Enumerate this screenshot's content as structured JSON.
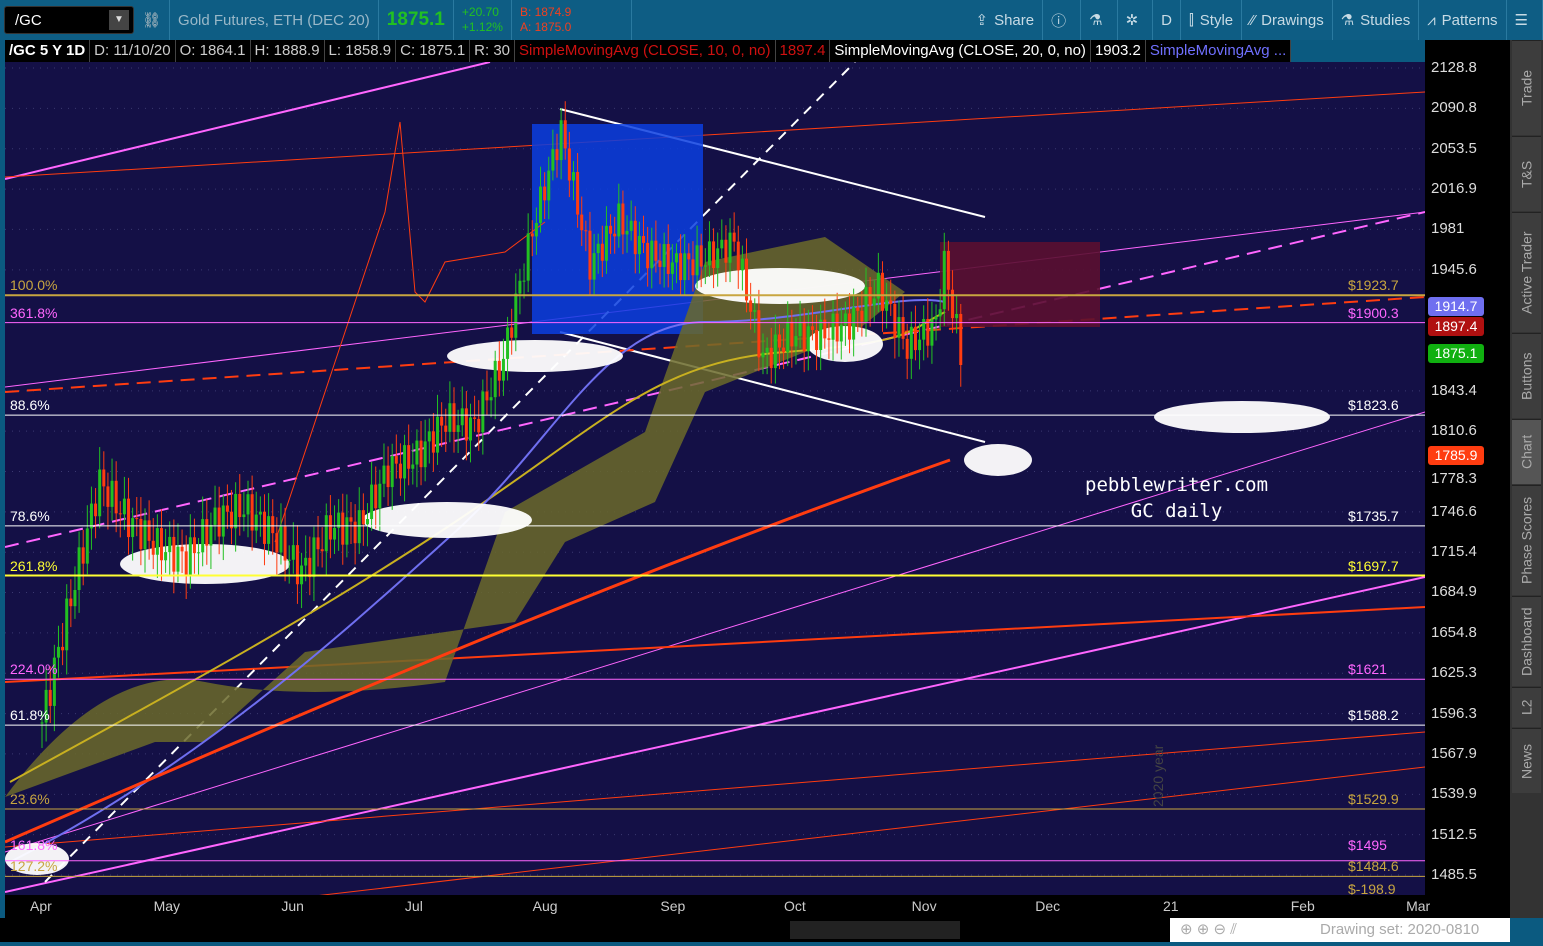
{
  "toolbar": {
    "symbol": "/GC",
    "description": "Gold Futures, ETH (DEC 20)",
    "last": "1875.1",
    "change": "+20.70",
    "change_pct": "+1.12%",
    "bid": "B: 1874.9",
    "ask": "A: 1875.0",
    "buttons": [
      {
        "icon": "share-icon",
        "label": "Share"
      },
      {
        "icon": "info-icon",
        "label": ""
      },
      {
        "icon": "flask-icon",
        "label": ""
      },
      {
        "icon": "gear-icon",
        "label": ""
      },
      {
        "icon": "",
        "label": "D"
      },
      {
        "icon": "candle-icon",
        "label": "Style"
      },
      {
        "icon": "pencil-icon",
        "label": "Drawings"
      },
      {
        "icon": "flask-icon",
        "label": "Studies"
      },
      {
        "icon": "pattern-icon",
        "label": "Patterns"
      },
      {
        "icon": "menu-icon",
        "label": ""
      }
    ]
  },
  "header": {
    "title": "/GC 5 Y 1D",
    "date": "D: 11/10/20",
    "open": "O: 1864.1",
    "high": "H: 1888.9",
    "low": "L: 1858.9",
    "close": "C: 1875.1",
    "range": "R: 30",
    "sma10": "SimpleMovingAvg (CLOSE, 10, 0, no)",
    "sma10_val": "1897.4",
    "sma20": "SimpleMovingAvg (CLOSE, 20, 0, no)",
    "sma20_val": "1903.2",
    "sma3": "SimpleMovingAvg ..."
  },
  "chart_data": {
    "type": "candlestick",
    "scale": "log",
    "ylim": [
      1485.5,
      2128.8
    ],
    "yticks": [
      "2128.8",
      "2090.8",
      "2053.5",
      "2016.9",
      "1981",
      "1945.6",
      "1843.4",
      "1810.6",
      "1778.3",
      "1746.6",
      "1715.4",
      "1684.9",
      "1654.8",
      "1625.3",
      "1596.3",
      "1567.9",
      "1539.9",
      "1512.5",
      "1485.5"
    ],
    "xticks": [
      "Apr",
      "May",
      "Jun",
      "Jul",
      "Aug",
      "Sep",
      "Oct",
      "Nov",
      "Dec",
      "21",
      "Feb",
      "Mar"
    ],
    "xtick_days": [
      0,
      30,
      61,
      91,
      122,
      153,
      183,
      214,
      244,
      275,
      306,
      334
    ],
    "closes_days": [
      0,
      7,
      14,
      21,
      28,
      35,
      42,
      49,
      56,
      63,
      70,
      77,
      84,
      91,
      98,
      105,
      112,
      119,
      126,
      133,
      140,
      147,
      154,
      161,
      168,
      175,
      182,
      189,
      196,
      203,
      210,
      217,
      219,
      223
    ],
    "closes": [
      1590,
      1680,
      1770,
      1740,
      1720,
      1710,
      1740,
      1750,
      1730,
      1700,
      1735,
      1735,
      1780,
      1790,
      1820,
      1815,
      1870,
      1980,
      2070,
      1950,
      1990,
      1960,
      1950,
      1955,
      1970,
      1870,
      1890,
      1890,
      1900,
      1930,
      1880,
      1900,
      1950,
      1875
    ],
    "levels": [
      {
        "price": 1923.7,
        "left": "100.0%",
        "right": "$1923.7",
        "color": "#c8a640"
      },
      {
        "price": 1900.3,
        "left": "361.8%",
        "right": "$1900.3",
        "color": "#ff66ff"
      },
      {
        "price": 1823.6,
        "left": "88.6%",
        "right": "$1823.6",
        "color": "#ffffff"
      },
      {
        "price": 1735.7,
        "left": "78.6%",
        "right": "$1735.7",
        "color": "#ffffff"
      },
      {
        "price": 1697.7,
        "left": "261.8%",
        "right": "$1697.7",
        "color": "#ffff33"
      },
      {
        "price": 1621,
        "left": "224.0%",
        "right": "$1621",
        "color": "#ff66ff"
      },
      {
        "price": 1588.2,
        "left": "61.8%",
        "right": "$1588.2",
        "color": "#ffffff"
      },
      {
        "price": 1529.9,
        "left": "23.6%",
        "right": "$1529.9",
        "color": "#c8a640"
      },
      {
        "price": 1495,
        "left": "161.8%",
        "right": "$1495",
        "color": "#ff66ff"
      },
      {
        "price": 1484.6,
        "left": "127.2%",
        "right": "$1484.6",
        "color": "#c8a640"
      }
    ],
    "extra_right_label": "$-198.9",
    "badges": [
      {
        "value": "1914.7",
        "color": "#6f6ff0"
      },
      {
        "value": "1897.4",
        "color": "#b01010"
      },
      {
        "value": "1875.1",
        "color": "#10b010"
      },
      {
        "value": "1785.9",
        "color": "#ff3c10"
      }
    ],
    "annotation": [
      "pebblewriter.com",
      "GC daily"
    ],
    "year_marker": "2020 year"
  },
  "side_tabs": [
    "Trade",
    "T&S",
    "Active Trader",
    "Buttons",
    "Chart",
    "Phase Scores",
    "Dashboard",
    "L2",
    "News"
  ],
  "footer": {
    "drawing_set": "Drawing set: 2020-0810"
  }
}
